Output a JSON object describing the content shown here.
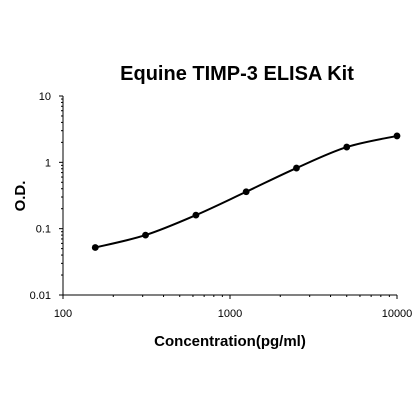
{
  "chart_data": {
    "type": "scatter",
    "title": "Equine TIMP-3 ELISA Kit",
    "xlabel": "Concentration(pg/ml)",
    "ylabel": "O.D.",
    "x_scale": "log",
    "y_scale": "log",
    "xlim": [
      100,
      10000
    ],
    "ylim": [
      0.01,
      10
    ],
    "x_ticks": [
      100,
      1000,
      10000
    ],
    "x_tick_labels": [
      "100",
      "1000",
      "10000"
    ],
    "y_ticks": [
      0.01,
      0.1,
      1,
      10
    ],
    "y_tick_labels": [
      "0.01",
      "0.1",
      "1",
      "10"
    ],
    "grid": false,
    "legend": "none",
    "series": [
      {
        "x": [
          156,
          312,
          625,
          1250,
          2500,
          5000,
          10000
        ],
        "y": [
          0.052,
          0.08,
          0.16,
          0.36,
          0.82,
          1.7,
          2.5
        ]
      }
    ],
    "colors": {
      "line": "#000000",
      "point": "#000000"
    }
  }
}
